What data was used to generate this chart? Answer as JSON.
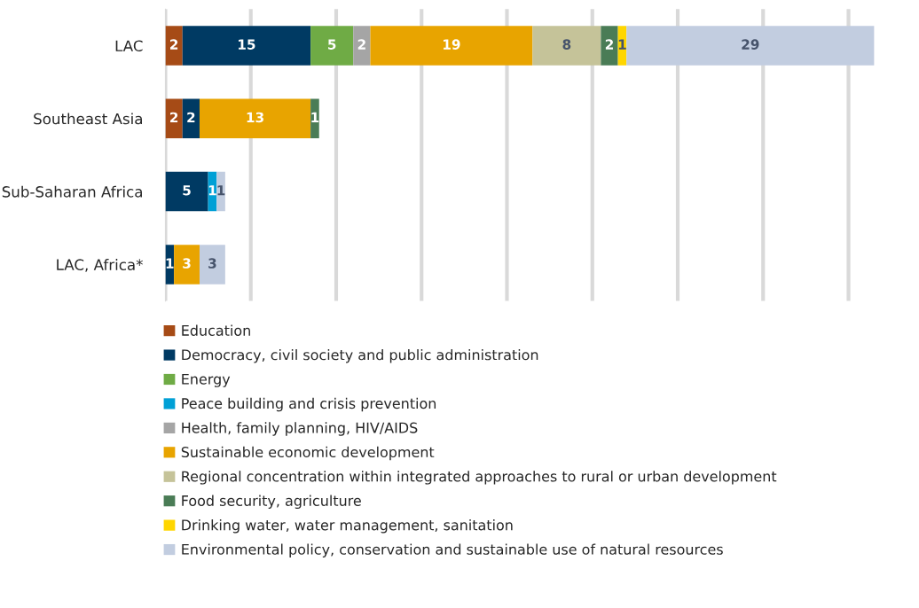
{
  "chart_data": {
    "type": "bar",
    "orientation": "horizontal",
    "stacked": true,
    "data_labels": true,
    "grid": "x",
    "legend": "bottom",
    "tick_labels": "y",
    "categories": [
      "LAC",
      "Southeast Asia",
      "Sub-Saharan Africa",
      "LAC, Africa*"
    ],
    "xticks": [
      {
        "value": 0,
        "label": null
      },
      {
        "value": 10,
        "label": null
      },
      {
        "value": 20,
        "label": null
      },
      {
        "value": 30,
        "label": null
      },
      {
        "value": 40,
        "label": null
      },
      {
        "value": 50,
        "label": null
      },
      {
        "value": 60,
        "label": null
      },
      {
        "value": 70,
        "label": null
      },
      {
        "value": 80,
        "label": null
      }
    ],
    "series": [
      {
        "name": "Education",
        "color": "#a64b16",
        "values": [
          2,
          2,
          null,
          null
        ]
      },
      {
        "name": "Democracy, civil society and public administration",
        "color": "#003a63",
        "values": [
          15,
          2,
          5,
          1
        ]
      },
      {
        "name": "Energy",
        "color": "#6fab45",
        "values": [
          5,
          null,
          null,
          null
        ]
      },
      {
        "name": "Peace building and crisis prevention",
        "color": "#00a0d6",
        "values": [
          null,
          null,
          1,
          null
        ]
      },
      {
        "name": "Health, family planning, HIV/AIDS",
        "color": "#a5a5a5",
        "values": [
          2,
          null,
          null,
          null
        ]
      },
      {
        "name": "Sustainable economic development",
        "color": "#e8a400",
        "values": [
          19,
          13,
          null,
          3
        ]
      },
      {
        "name": "Regional concentration within integrated approaches to rural or urban development",
        "color": "#c5c399",
        "values": [
          8,
          null,
          null,
          null
        ]
      },
      {
        "name": "Food security, agriculture",
        "color": "#4a7c56",
        "values": [
          2,
          1,
          null,
          null
        ]
      },
      {
        "name": "Drinking water, water management, sanitation",
        "color": "#ffd600",
        "values": [
          1,
          null,
          null,
          null
        ]
      },
      {
        "name": "Environmental policy, conservation and sustainable use of natural resources",
        "color": "#c2cde0",
        "values": [
          29,
          null,
          1,
          3
        ]
      }
    ]
  }
}
